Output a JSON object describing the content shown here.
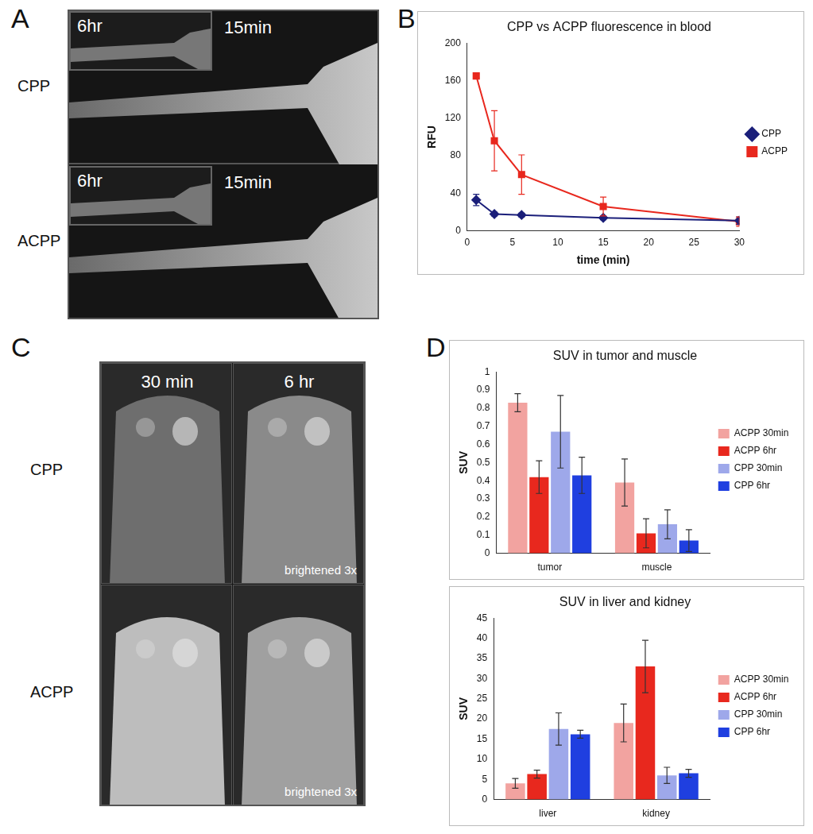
{
  "figure_labels": [
    "A",
    "B",
    "C",
    "D"
  ],
  "image_panels": {
    "A": {
      "rows": [
        "CPP",
        "ACPP"
      ],
      "inset": "6hr",
      "main": "15min"
    },
    "C": {
      "rows": [
        "CPP",
        "ACPP"
      ],
      "columns": [
        "30 min",
        "6 hr"
      ],
      "note": "brightened 3x"
    }
  },
  "chart_data": [
    {
      "type": "line",
      "title": "CPP vs ACPP fluorescence in blood",
      "x_label": "time (min)",
      "y_label": "RFU",
      "x": [
        1,
        3,
        6,
        15,
        30
      ],
      "series": [
        {
          "name": "CPP",
          "color": "#1b1f7a",
          "marker": "diamond",
          "values": [
            33,
            18,
            17,
            14,
            11
          ],
          "errors": [
            6,
            2,
            2,
            2,
            4
          ]
        },
        {
          "name": "ACPP",
          "color": "#e8281e",
          "marker": "square",
          "values": [
            165,
            96,
            60,
            26,
            10
          ],
          "errors": [
            2,
            32,
            21,
            10,
            5
          ]
        }
      ],
      "xlim": [
        0,
        30
      ],
      "xticks": [
        0,
        5,
        10,
        15,
        20,
        25,
        30
      ],
      "ylim": [
        0,
        200
      ],
      "yticks": [
        0,
        40,
        80,
        120,
        160,
        200
      ],
      "grid": false,
      "legend": "right"
    },
    {
      "type": "bar",
      "title": "SUV in tumor and muscle",
      "y_label": "SUV",
      "categories": [
        "tumor",
        "muscle"
      ],
      "series": [
        {
          "name": "ACPP 30min",
          "color": "#f2a3a0",
          "values": [
            0.83,
            0.39
          ],
          "errors": [
            0.05,
            0.13
          ]
        },
        {
          "name": "ACPP 6hr",
          "color": "#e8281e",
          "values": [
            0.42,
            0.11
          ],
          "errors": [
            0.09,
            0.08
          ]
        },
        {
          "name": "CPP 30min",
          "color": "#9ea8ea",
          "values": [
            0.67,
            0.16
          ],
          "errors": [
            0.2,
            0.08
          ]
        },
        {
          "name": "CPP 6hr",
          "color": "#1f3fe0",
          "values": [
            0.43,
            0.07
          ],
          "errors": [
            0.1,
            0.06
          ]
        }
      ],
      "ylim": [
        0,
        1
      ],
      "yticks": [
        0,
        0.1,
        0.2,
        0.3,
        0.4,
        0.5,
        0.6,
        0.7,
        0.8,
        0.9,
        1
      ],
      "grid": false,
      "legend": "right"
    },
    {
      "type": "bar",
      "title": "SUV in liver and kidney",
      "y_label": "SUV",
      "categories": [
        "liver",
        "kidney"
      ],
      "series": [
        {
          "name": "ACPP 30min",
          "color": "#f2a3a0",
          "values": [
            4,
            19
          ],
          "errors": [
            1.2,
            4.7
          ]
        },
        {
          "name": "ACPP 6hr",
          "color": "#e8281e",
          "values": [
            6.3,
            33
          ],
          "errors": [
            1,
            6.5
          ]
        },
        {
          "name": "CPP 30min",
          "color": "#9ea8ea",
          "values": [
            17.5,
            6
          ],
          "errors": [
            4,
            2
          ]
        },
        {
          "name": "CPP 6hr",
          "color": "#1f3fe0",
          "values": [
            16.2,
            6.5
          ],
          "errors": [
            1,
            1
          ]
        }
      ],
      "ylim": [
        0,
        45
      ],
      "yticks": [
        0,
        5,
        10,
        15,
        20,
        25,
        30,
        35,
        40,
        45
      ],
      "grid": false,
      "legend": "right"
    }
  ]
}
